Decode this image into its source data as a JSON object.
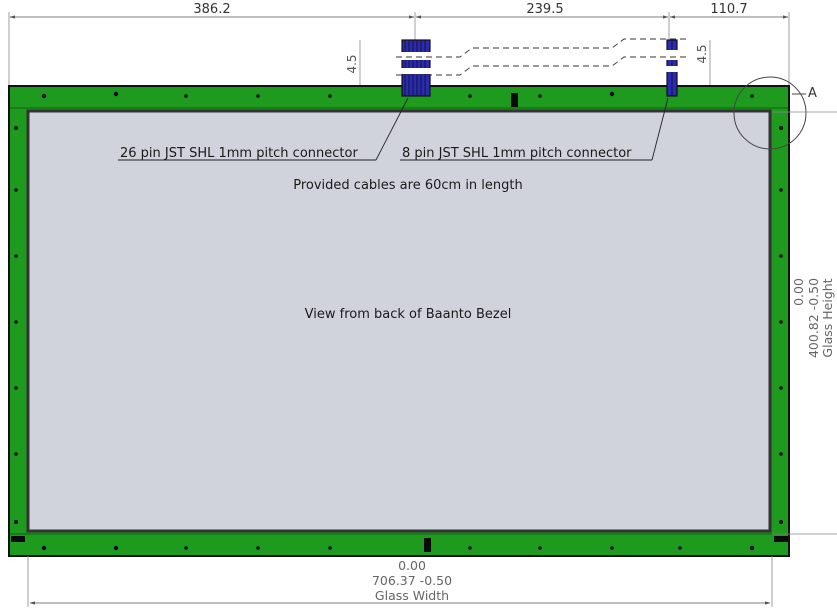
{
  "dimensions": {
    "top_left": "386.2",
    "top_middle": "239.5",
    "top_right": "110.7",
    "offset_left": "4.5",
    "offset_right": "4.5"
  },
  "detail_label": "A",
  "callouts": {
    "connector_26": "26 pin JST SHL 1mm pitch connector",
    "connector_8": "8 pin JST SHL 1mm pitch connector",
    "cable_note": "Provided cables are 60cm in length"
  },
  "view_label": "View from back of Baanto Bezel",
  "glass_height": {
    "nominal": "0.00",
    "value": "400.82 -0.50",
    "label": "Glass Height"
  },
  "glass_width": {
    "nominal": "0.00",
    "value": "706.37 -0.50",
    "label": "Glass Width"
  },
  "colors": {
    "frame": "#1e9a1e",
    "glass": "#d0d3dc",
    "connector": "#2a2ab4",
    "outline": "#111111"
  }
}
